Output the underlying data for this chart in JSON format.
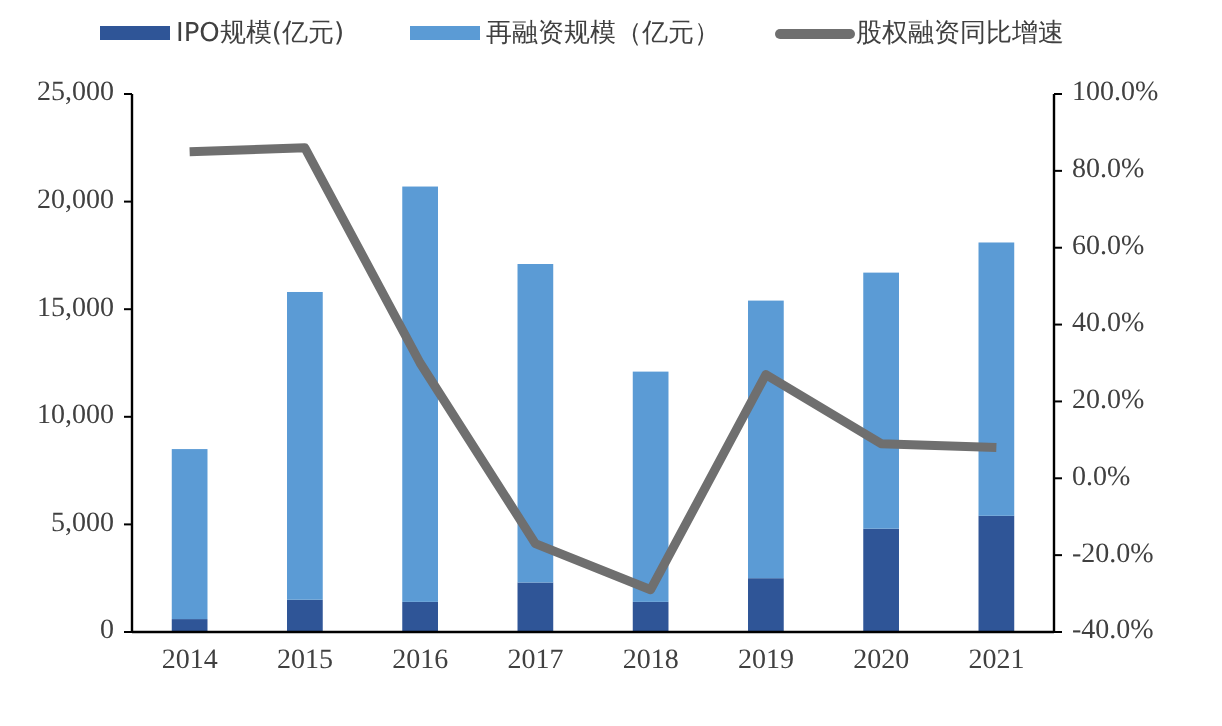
{
  "chart_data": {
    "type": "bar",
    "stacked": true,
    "legend": "top",
    "grid": false,
    "categories": [
      "2014",
      "2015",
      "2016",
      "2017",
      "2018",
      "2019",
      "2020",
      "2021"
    ],
    "series": [
      {
        "name": "IPO规模(亿元)",
        "color": "#2f5597",
        "values": [
          600,
          1500,
          1400,
          2300,
          1400,
          2500,
          4800,
          5400
        ]
      },
      {
        "name": "再融资规模（亿元）",
        "color": "#5b9bd5",
        "values": [
          7900,
          14300,
          19300,
          14800,
          10700,
          12900,
          11900,
          12700
        ]
      },
      {
        "name": "股权融资同比增速",
        "type": "line",
        "axis": "y2",
        "color": "#6f6f6f",
        "values": [
          85,
          86,
          30,
          -17,
          -29,
          27,
          9,
          8
        ]
      }
    ],
    "ylim": [
      0,
      25000
    ],
    "yticks": [
      {
        "value": 0,
        "label": "0"
      },
      {
        "value": 5000,
        "label": "5,000"
      },
      {
        "value": 10000,
        "label": "10,000"
      },
      {
        "value": 15000,
        "label": "15,000"
      },
      {
        "value": 20000,
        "label": "20,000"
      },
      {
        "value": 25000,
        "label": "25,000"
      }
    ],
    "y2lim": [
      -40,
      100
    ],
    "y2ticks": [
      {
        "value": -40,
        "label": "-40.0%"
      },
      {
        "value": -20,
        "label": "-20.0%"
      },
      {
        "value": 0,
        "label": "0.0%"
      },
      {
        "value": 20,
        "label": "20.0%"
      },
      {
        "value": 40,
        "label": "40.0%"
      },
      {
        "value": 60,
        "label": "60.0%"
      },
      {
        "value": 80,
        "label": "80.0%"
      },
      {
        "value": 100,
        "label": "100.0%"
      }
    ]
  }
}
